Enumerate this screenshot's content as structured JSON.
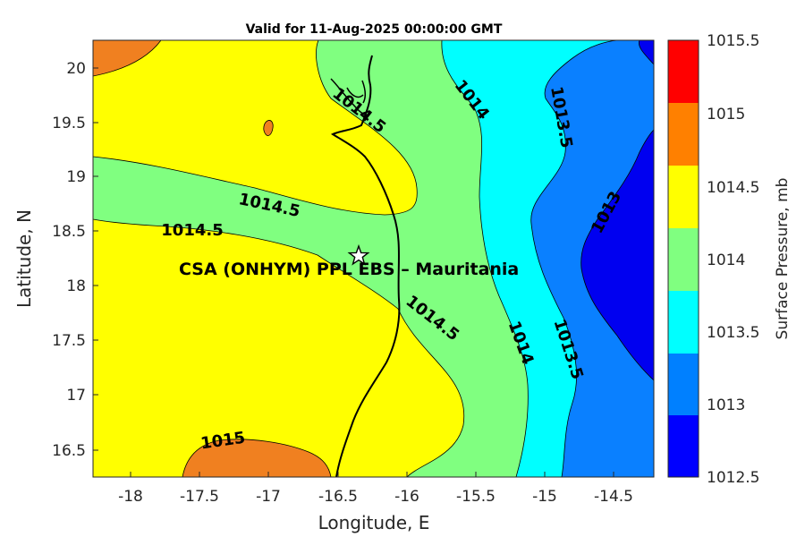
{
  "title": "Valid for 11-Aug-2025 00:00:00 GMT",
  "xlabel": "Longitude, E",
  "ylabel": "Latitude, N",
  "x_ticks": [
    "-18",
    "-17.5",
    "-17",
    "-16.5",
    "-16",
    "-15.5",
    "-15",
    "-14.5"
  ],
  "y_ticks": [
    "16.5",
    "17",
    "17.5",
    "18",
    "18.5",
    "19",
    "19.5",
    "20"
  ],
  "colorbar": {
    "label": "Surface Pressure, mb",
    "ticks": [
      "1015.5",
      "1015",
      "1014.5",
      "1014",
      "1013.5",
      "1013",
      "1012.5"
    ],
    "colors": [
      "#ff0000",
      "#ff8000",
      "#ffff00",
      "#80ff80",
      "#00ffff",
      "#0080ff",
      "#0000ff"
    ]
  },
  "contour_labels": [
    "1014.5",
    "1014",
    "1013.5",
    "1014.5",
    "1014.5",
    "1013",
    "1014.5",
    "1014",
    "1013.5",
    "1015"
  ],
  "site": {
    "label": "CSA (ONHYM) PPL EBS  – Mauritania",
    "marker": "star-icon"
  },
  "colors": {
    "orange": "#f08020",
    "yellow": "#ffff00",
    "green": "#80ff80",
    "cyan": "#00ffff",
    "mid_blue": "#0a80ff",
    "deep_blue": "#0000f0"
  }
}
